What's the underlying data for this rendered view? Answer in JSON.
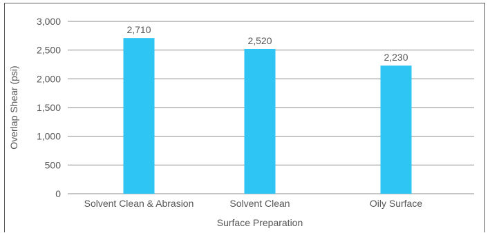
{
  "chart_data": {
    "type": "bar",
    "categories": [
      "Solvent Clean & Abrasion",
      "Solvent Clean",
      "Oily Surface"
    ],
    "values": [
      2710,
      2520,
      2230
    ],
    "data_labels": [
      "2,710",
      "2,520",
      "2,230"
    ],
    "title": "",
    "xlabel": "Surface Preparation",
    "ylabel": "Overlap Shear (psi)",
    "ylim": [
      0,
      3000
    ],
    "yticks": [
      0,
      500,
      1000,
      1500,
      2000,
      2500,
      3000
    ],
    "ytick_labels": [
      "0",
      "500",
      "1,000",
      "1,500",
      "2,000",
      "2,500",
      "3,000"
    ],
    "grid": true,
    "legend": "none",
    "bar_color": "#2ec4f3"
  }
}
